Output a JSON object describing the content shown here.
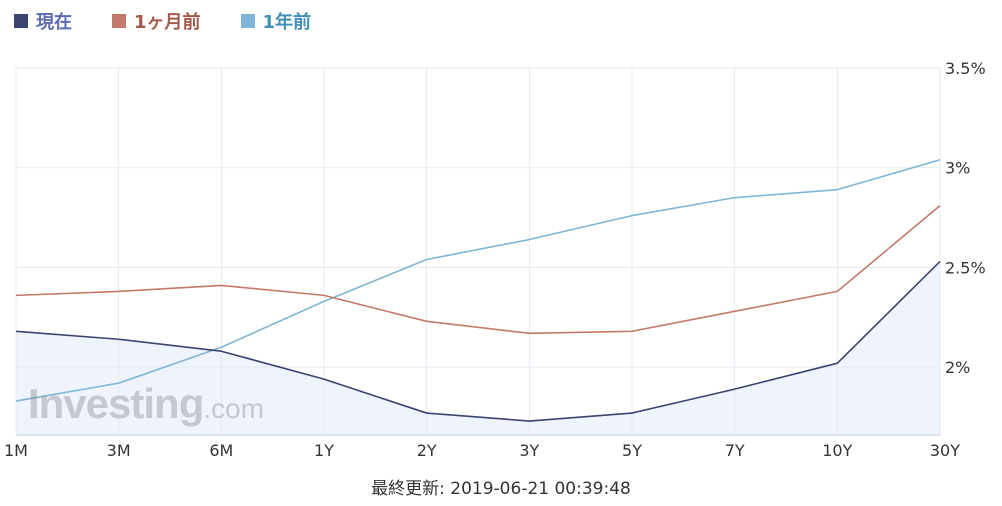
{
  "legend": [
    {
      "label": "現在",
      "color": "#3b4470",
      "text_color": "#5c6bb3"
    },
    {
      "label": "1ヶ月前",
      "color": "#c27a6a",
      "text_color": "#a45a4a"
    },
    {
      "label": "1年前",
      "color": "#7fb5d6",
      "text_color": "#3f8fb8"
    }
  ],
  "watermark": {
    "brand": "Investing",
    "suffix": ".com"
  },
  "footer": {
    "text": "最終更新: 2019-06-21 00:39:48"
  },
  "chart_data": {
    "type": "line",
    "categories": [
      "1M",
      "3M",
      "6M",
      "1Y",
      "2Y",
      "3Y",
      "5Y",
      "7Y",
      "10Y",
      "30Y"
    ],
    "y_ticks": [
      {
        "value": 2.0,
        "label": "2%"
      },
      {
        "value": 2.5,
        "label": "2.5%"
      },
      {
        "value": 3.0,
        "label": "3%"
      },
      {
        "value": 3.5,
        "label": "3.5%"
      }
    ],
    "ylim": [
      1.66,
      3.5
    ],
    "grid": true,
    "series": [
      {
        "name": "現在",
        "color": "#3b4470",
        "fill": "#eef3fc",
        "values": [
          2.18,
          2.14,
          2.08,
          1.94,
          1.77,
          1.73,
          1.77,
          1.89,
          2.02,
          2.53
        ]
      },
      {
        "name": "1ヶ月前",
        "color": "#c27a6a",
        "values": [
          2.36,
          2.38,
          2.41,
          2.36,
          2.23,
          2.17,
          2.18,
          2.28,
          2.38,
          2.81
        ]
      },
      {
        "name": "1年前",
        "color": "#7fb5d6",
        "values": [
          1.83,
          1.92,
          2.1,
          2.33,
          2.54,
          2.64,
          2.76,
          2.85,
          2.89,
          3.04
        ]
      }
    ]
  }
}
